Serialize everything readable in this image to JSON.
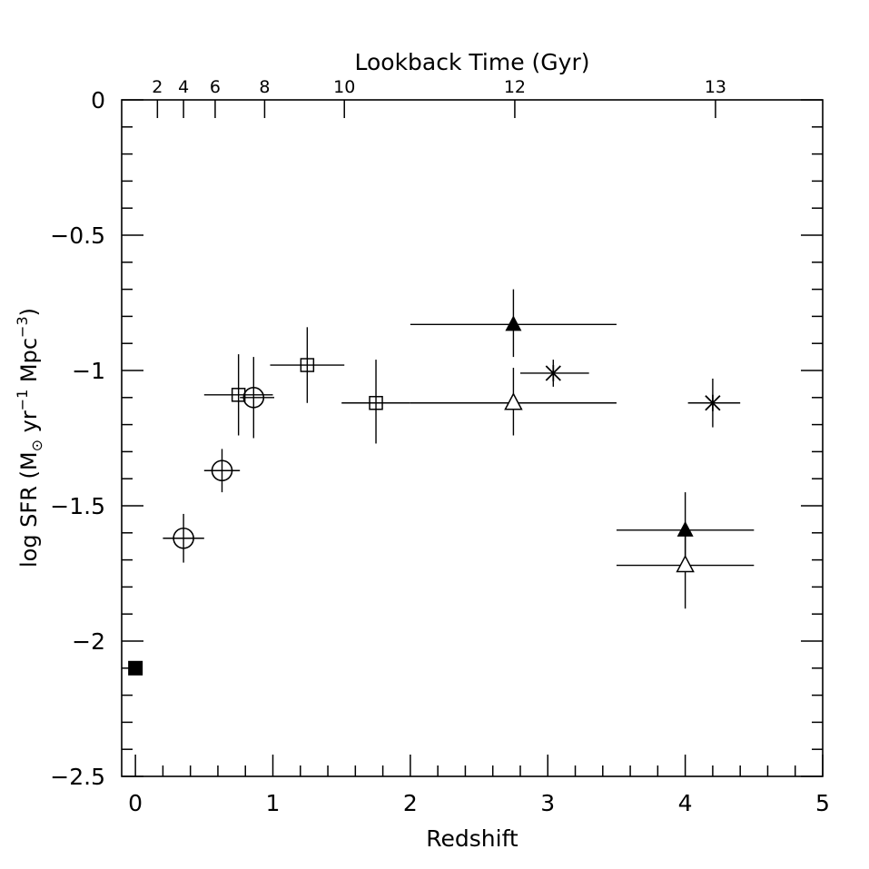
{
  "chart_data": {
    "type": "scatter",
    "xlabel": "Redshift",
    "ylabel_main": "log SFR (M",
    "ylabel_sub": "⊙",
    "ylabel_units1": " yr",
    "ylabel_exp1": "−1",
    "ylabel_units2": " Mpc",
    "ylabel_exp2": "−3",
    "ylabel_close": ")",
    "top_axis_label": "Lookback Time (Gyr)",
    "xlim": [
      -0.1,
      5.0
    ],
    "ylim": [
      -2.5,
      0.0
    ],
    "x_ticks": [
      0,
      1,
      2,
      3,
      4,
      5
    ],
    "y_ticks": [
      0,
      -0.5,
      -1,
      -1.5,
      -2,
      -2.5
    ],
    "x_tick_labels": [
      "0",
      "1",
      "2",
      "3",
      "4",
      "5"
    ],
    "y_tick_labels": [
      "0",
      "−0.5",
      "−1",
      "−1.5",
      "−2",
      "−2.5"
    ],
    "top_ticks": [
      {
        "label": "2",
        "z": 0.16
      },
      {
        "label": "4",
        "z": 0.35
      },
      {
        "label": "6",
        "z": 0.58
      },
      {
        "label": "8",
        "z": 0.94
      },
      {
        "label": "10",
        "z": 1.52
      },
      {
        "label": "12",
        "z": 2.76
      },
      {
        "label": "13",
        "z": 4.22
      }
    ],
    "points": [
      {
        "marker": "filled-square",
        "x": 0.0,
        "y": -2.1
      },
      {
        "marker": "open-circle",
        "x": 0.35,
        "y": -1.62,
        "xerr": [
          0.15,
          0.15
        ],
        "yerr": [
          0.09,
          0.09
        ]
      },
      {
        "marker": "open-circle",
        "x": 0.63,
        "y": -1.37,
        "xerr": [
          0.13,
          0.13
        ],
        "yerr": [
          0.08,
          0.08
        ]
      },
      {
        "marker": "open-circle",
        "x": 0.86,
        "y": -1.1,
        "xerr": [
          0.1,
          0.15
        ],
        "yerr": [
          0.15,
          0.15
        ]
      },
      {
        "marker": "open-square",
        "x": 0.75,
        "y": -1.09,
        "xerr": [
          0.25,
          0.25
        ],
        "yerr": [
          0.15,
          0.15
        ]
      },
      {
        "marker": "open-square",
        "x": 1.25,
        "y": -0.98,
        "xerr": [
          0.27,
          0.27
        ],
        "yerr": [
          0.14,
          0.14
        ]
      },
      {
        "marker": "open-square",
        "x": 1.75,
        "y": -1.12,
        "xerr": [
          0.25,
          0.25
        ],
        "yerr": [
          0.15,
          0.16
        ]
      },
      {
        "marker": "filled-triangle",
        "x": 2.75,
        "y": -0.83,
        "xerr": [
          0.75,
          0.75
        ],
        "yerr": [
          0.12,
          0.13
        ]
      },
      {
        "marker": "open-triangle",
        "x": 2.75,
        "y": -1.12,
        "xerr": [
          0.75,
          0.75
        ],
        "yerr": [
          0.12,
          0.13
        ]
      },
      {
        "marker": "asterisk",
        "x": 3.04,
        "y": -1.01,
        "xerr": [
          0.24,
          0.26
        ],
        "yerr": [
          0.05,
          0.05
        ]
      },
      {
        "marker": "asterisk",
        "x": 4.2,
        "y": -1.12,
        "xerr": [
          0.18,
          0.2
        ],
        "yerr": [
          0.09,
          0.09
        ]
      },
      {
        "marker": "filled-triangle",
        "x": 4.0,
        "y": -1.59,
        "xerr": [
          0.5,
          0.5
        ],
        "yerr": [
          0.14,
          0.14
        ]
      },
      {
        "marker": "open-triangle",
        "x": 4.0,
        "y": -1.72,
        "xerr": [
          0.5,
          0.5
        ],
        "yerr": [
          0.16,
          0.16
        ]
      }
    ]
  }
}
